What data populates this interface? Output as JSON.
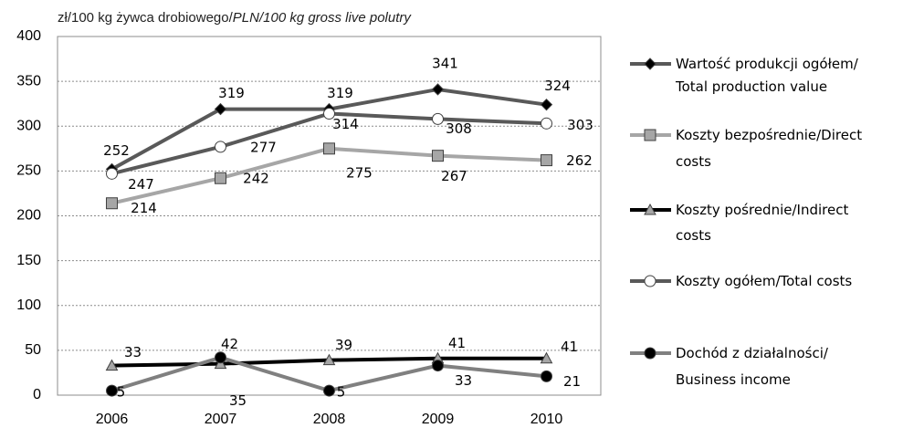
{
  "chart_data": {
    "type": "line",
    "title": "zł/100 kg żywca drobiowego/",
    "title_italic": "PLN/100 kg gross live polutry",
    "categories": [
      "2006",
      "2007",
      "2008",
      "2009",
      "2010"
    ],
    "ylim": [
      0,
      400
    ],
    "yticks": [
      0,
      50,
      100,
      150,
      200,
      250,
      300,
      350,
      400
    ],
    "grid": true,
    "legend": "right",
    "series": [
      {
        "name": "Wartość produkcji ogółem/\nTotal production value",
        "color": "#595959",
        "marker": "diamond",
        "marker_fill": "#000000",
        "values": [
          252,
          319,
          319,
          341,
          324
        ]
      },
      {
        "name": "Koszty bezpośrednie/Direct\ncosts",
        "color": "#a6a6a6",
        "marker": "square",
        "marker_fill": "#a6a6a6",
        "values": [
          214,
          242,
          275,
          267,
          262
        ]
      },
      {
        "name": "Koszty pośrednie/Indirect\ncosts",
        "color": "#000000",
        "marker": "triangle",
        "marker_fill": "#a6a6a6",
        "values": [
          33,
          35,
          39,
          41,
          41
        ]
      },
      {
        "name": "Koszty ogółem/Total costs",
        "color": "#595959",
        "marker": "circle",
        "marker_fill": "#ffffff",
        "values": [
          247,
          277,
          314,
          308,
          303
        ]
      },
      {
        "name": "Dochód z działalności/\nBusiness income",
        "color": "#808080",
        "marker": "circle",
        "marker_fill": "#000000",
        "values": [
          5,
          42,
          5,
          33,
          21
        ]
      }
    ]
  }
}
